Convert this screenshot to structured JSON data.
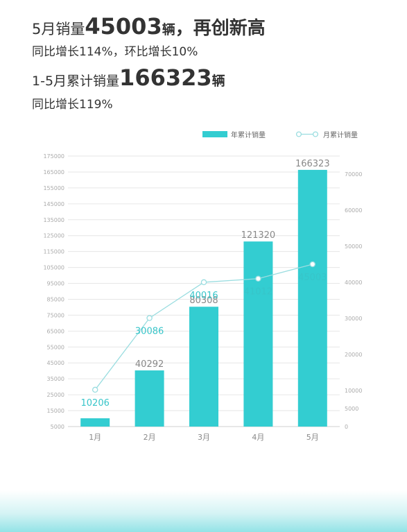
{
  "headline": {
    "line1_prefix": "5月销量",
    "line1_number": "45003",
    "line1_unit": "辆",
    "line1_suffix": "，再创新高",
    "line2": "同比增长114%，环比增长10%",
    "line3_prefix": "1-5月累计销量",
    "line3_number": "166323",
    "line3_unit": "辆",
    "line4": "同比增长119%"
  },
  "colors": {
    "bar": "#33CDD1",
    "line": "#9ADDE0",
    "line_label": "#37C5C9",
    "bar_label": "#888888",
    "tick": "#aaaaaa",
    "grid": "#e6e6e6"
  },
  "chart_data": {
    "type": "bar",
    "categories": [
      "1月",
      "2月",
      "3月",
      "4月",
      "5月"
    ],
    "series": [
      {
        "name": "年累计销量",
        "type": "bar",
        "axis": "left",
        "values": [
          10206,
          40292,
          80308,
          121320,
          166323
        ],
        "labels": [
          "",
          "40292",
          "80308",
          "121320",
          "166323"
        ]
      },
      {
        "name": "月累计销量",
        "type": "line",
        "axis": "right",
        "values": [
          10206,
          30086,
          40016,
          41012,
          45003
        ],
        "labels": [
          "10206",
          "30086",
          "40016",
          "41012",
          "45003"
        ]
      }
    ],
    "y_left": {
      "min": 5000,
      "max": 175000,
      "ticks": [
        5000,
        15000,
        25000,
        35000,
        45000,
        55000,
        65000,
        75000,
        85000,
        95000,
        105000,
        115000,
        125000,
        135000,
        145000,
        155000,
        165000,
        175000
      ]
    },
    "y_right": {
      "min": 0,
      "max": 75000,
      "ticks": [
        0,
        5000,
        10000,
        20000,
        30000,
        40000,
        50000,
        60000,
        70000
      ]
    },
    "legend_position": "top-right",
    "grid": true
  }
}
